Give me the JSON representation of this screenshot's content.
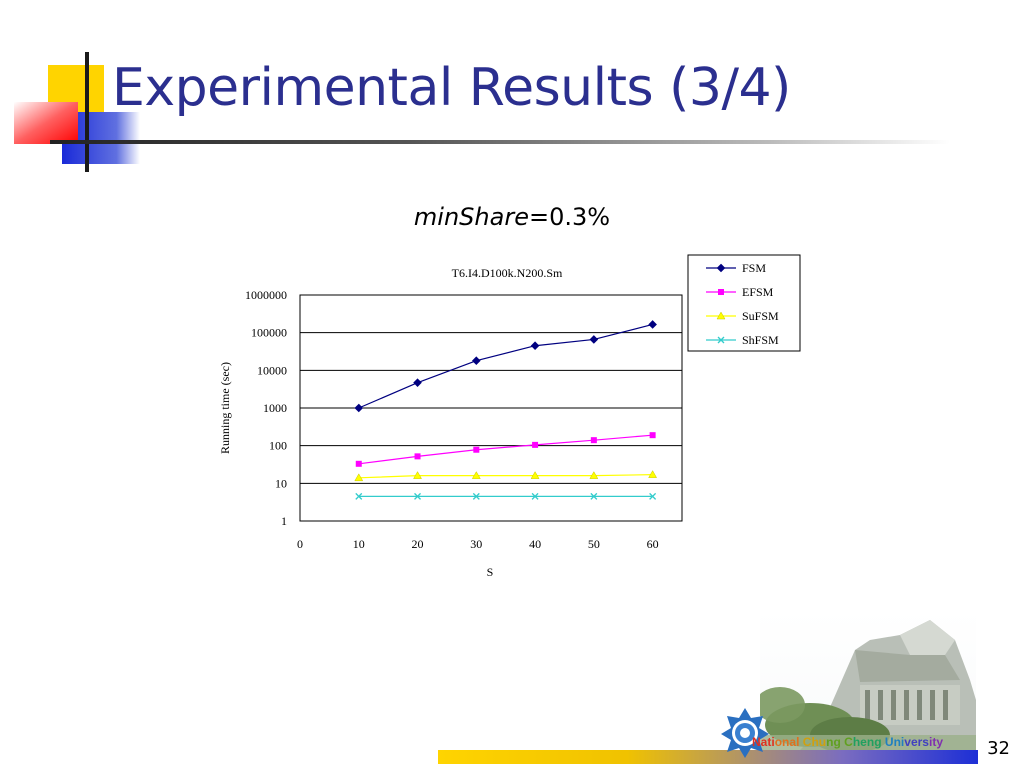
{
  "slide": {
    "title": "Experimental Results (3/4)",
    "subtitle_italic": "minShare",
    "subtitle_rest": "=0.3%",
    "page_number": "32",
    "university": "National Chung Cheng University"
  },
  "chart_data": {
    "type": "line",
    "title": "T6.I4.D100k.N200.Sm",
    "xlabel": "S",
    "ylabel": "Running time (sec)",
    "x": [
      10,
      20,
      30,
      40,
      50,
      60
    ],
    "xlim": [
      0,
      65
    ],
    "x_ticks": [
      0,
      10,
      20,
      30,
      40,
      50,
      60
    ],
    "ylim": [
      1,
      1000000
    ],
    "y_scale": "log",
    "y_ticks": [
      1,
      10,
      100,
      1000,
      10000,
      100000,
      1000000
    ],
    "grid": "horizontal",
    "legend_position": "right",
    "series": [
      {
        "name": "FSM",
        "values": [
          1000,
          4700,
          18000,
          45000,
          66000,
          165000
        ],
        "color": "#000080",
        "marker": "diamond"
      },
      {
        "name": "EFSM",
        "values": [
          33,
          52,
          78,
          105,
          140,
          190
        ],
        "color": "#ff00ff",
        "marker": "square"
      },
      {
        "name": "SuFSM",
        "values": [
          14,
          16,
          16,
          16,
          16,
          17
        ],
        "color": "#ffff00",
        "marker": "triangle"
      },
      {
        "name": "ShFSM",
        "values": [
          4.5,
          4.5,
          4.5,
          4.5,
          4.5,
          4.5
        ],
        "color": "#33cccc",
        "marker": "x"
      }
    ]
  },
  "icons": [
    "decorative-squares-icon",
    "university-logo-icon",
    "building-photo"
  ]
}
